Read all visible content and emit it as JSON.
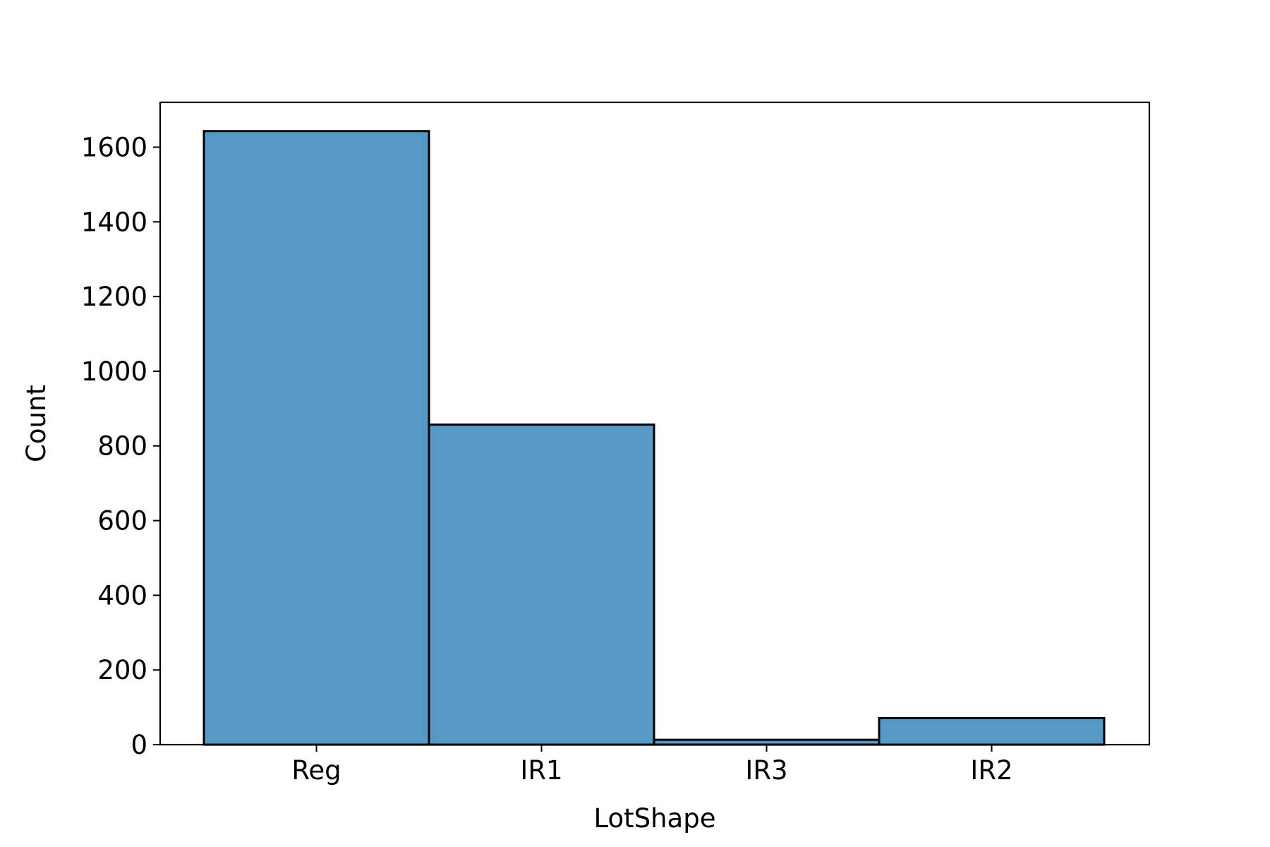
{
  "chart_data": {
    "type": "bar",
    "categories": [
      "Reg",
      "IR1",
      "IR3",
      "IR2"
    ],
    "values": [
      1643,
      857,
      13,
      71
    ],
    "xlabel": "LotShape",
    "ylabel": "Count",
    "ylim": [
      0,
      1720
    ],
    "yticks": [
      0,
      200,
      400,
      600,
      800,
      1000,
      1200,
      1400,
      1600
    ],
    "bar_color": "#5799c6",
    "edge_color": "#000000",
    "grid": false,
    "legend": false
  }
}
